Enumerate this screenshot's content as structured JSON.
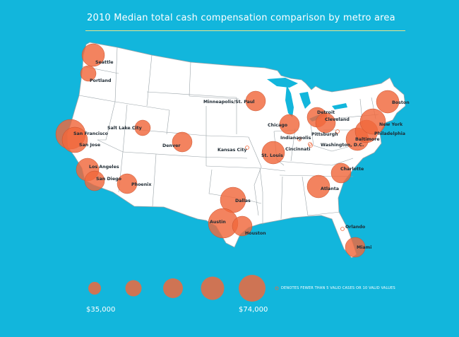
{
  "title": "2010 Median total cash compensation comparison by metro area",
  "colors": {
    "background": "#12b6dc",
    "land": "#ffffff",
    "border": "#9aa3a8",
    "bubble": "#f0683c",
    "bubble_outline": "#c8502c"
  },
  "legend": {
    "min_label": "$35,000",
    "max_label": "$74,000",
    "note": "DENOTES FEWER THAN 5 VALID CASES OR 10 VALID VALUES",
    "note_marker": "hollow-circle"
  },
  "cities": [
    {
      "name": "Seattle",
      "size": 3
    },
    {
      "name": "Portland",
      "size": 1
    },
    {
      "name": "San Francisco",
      "size": 5
    },
    {
      "name": "San Jose",
      "size": 4
    },
    {
      "name": "Los Angeles",
      "size": 3
    },
    {
      "name": "San Diego",
      "size": 2
    },
    {
      "name": "Salt Lake City",
      "size": 1
    },
    {
      "name": "Phoenix",
      "size": 2
    },
    {
      "name": "Denver",
      "size": 2
    },
    {
      "name": "Dallas",
      "size": 4
    },
    {
      "name": "Austin",
      "size": 5
    },
    {
      "name": "Houston",
      "size": 2
    },
    {
      "name": "Kansas City",
      "size": 0
    },
    {
      "name": "Minneapolis/St. Paul",
      "size": 2
    },
    {
      "name": "St. Louis",
      "size": 3
    },
    {
      "name": "Chicago",
      "size": 2
    },
    {
      "name": "Indianapolis",
      "size": 0
    },
    {
      "name": "Cincinnati",
      "size": 0
    },
    {
      "name": "Detroit",
      "size": 2
    },
    {
      "name": "Cleveland",
      "size": 2
    },
    {
      "name": "Pittsburgh",
      "size": 0
    },
    {
      "name": "Washington, D.C.",
      "size": 0
    },
    {
      "name": "Baltimore",
      "size": 3
    },
    {
      "name": "Philadelphia",
      "size": 3
    },
    {
      "name": "New York",
      "size": 4
    },
    {
      "name": "Boston",
      "size": 3
    },
    {
      "name": "Charlotte",
      "size": 2
    },
    {
      "name": "Atlanta",
      "size": 3
    },
    {
      "name": "Orlando",
      "size": 0
    },
    {
      "name": "Miami",
      "size": 2
    }
  ]
}
